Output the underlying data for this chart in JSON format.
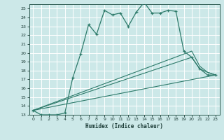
{
  "xlabel": "Humidex (Indice chaleur)",
  "xlim": [
    -0.5,
    23.5
  ],
  "ylim": [
    13,
    25.5
  ],
  "yticks": [
    13,
    14,
    15,
    16,
    17,
    18,
    19,
    20,
    21,
    22,
    23,
    24,
    25
  ],
  "xticks": [
    0,
    1,
    2,
    3,
    4,
    5,
    6,
    7,
    8,
    9,
    10,
    11,
    12,
    13,
    14,
    15,
    16,
    17,
    18,
    19,
    20,
    21,
    22,
    23
  ],
  "bg_color": "#cce8e8",
  "line_color": "#2d7a6a",
  "grid_color": "#ffffff",
  "line1_x": [
    0,
    1,
    2,
    3,
    4,
    5,
    6,
    7,
    8,
    9,
    10,
    11,
    12,
    13,
    14,
    15,
    16,
    17,
    18,
    19,
    20,
    21,
    22,
    23
  ],
  "line1_y": [
    13.5,
    13.0,
    13.0,
    13.0,
    13.2,
    17.2,
    19.9,
    23.2,
    22.1,
    24.8,
    24.3,
    24.5,
    23.0,
    24.6,
    25.7,
    24.5,
    24.5,
    24.8,
    24.7,
    20.2,
    19.5,
    18.2,
    17.5,
    17.5
  ],
  "line2_x": [
    0,
    23
  ],
  "line2_y": [
    13.5,
    17.5
  ],
  "line3_x": [
    0,
    20,
    21,
    22,
    23
  ],
  "line3_y": [
    13.5,
    19.5,
    18.2,
    17.8,
    17.5
  ],
  "line4_x": [
    0,
    20,
    21,
    22,
    23
  ],
  "line4_y": [
    13.5,
    20.2,
    18.5,
    17.8,
    17.5
  ]
}
